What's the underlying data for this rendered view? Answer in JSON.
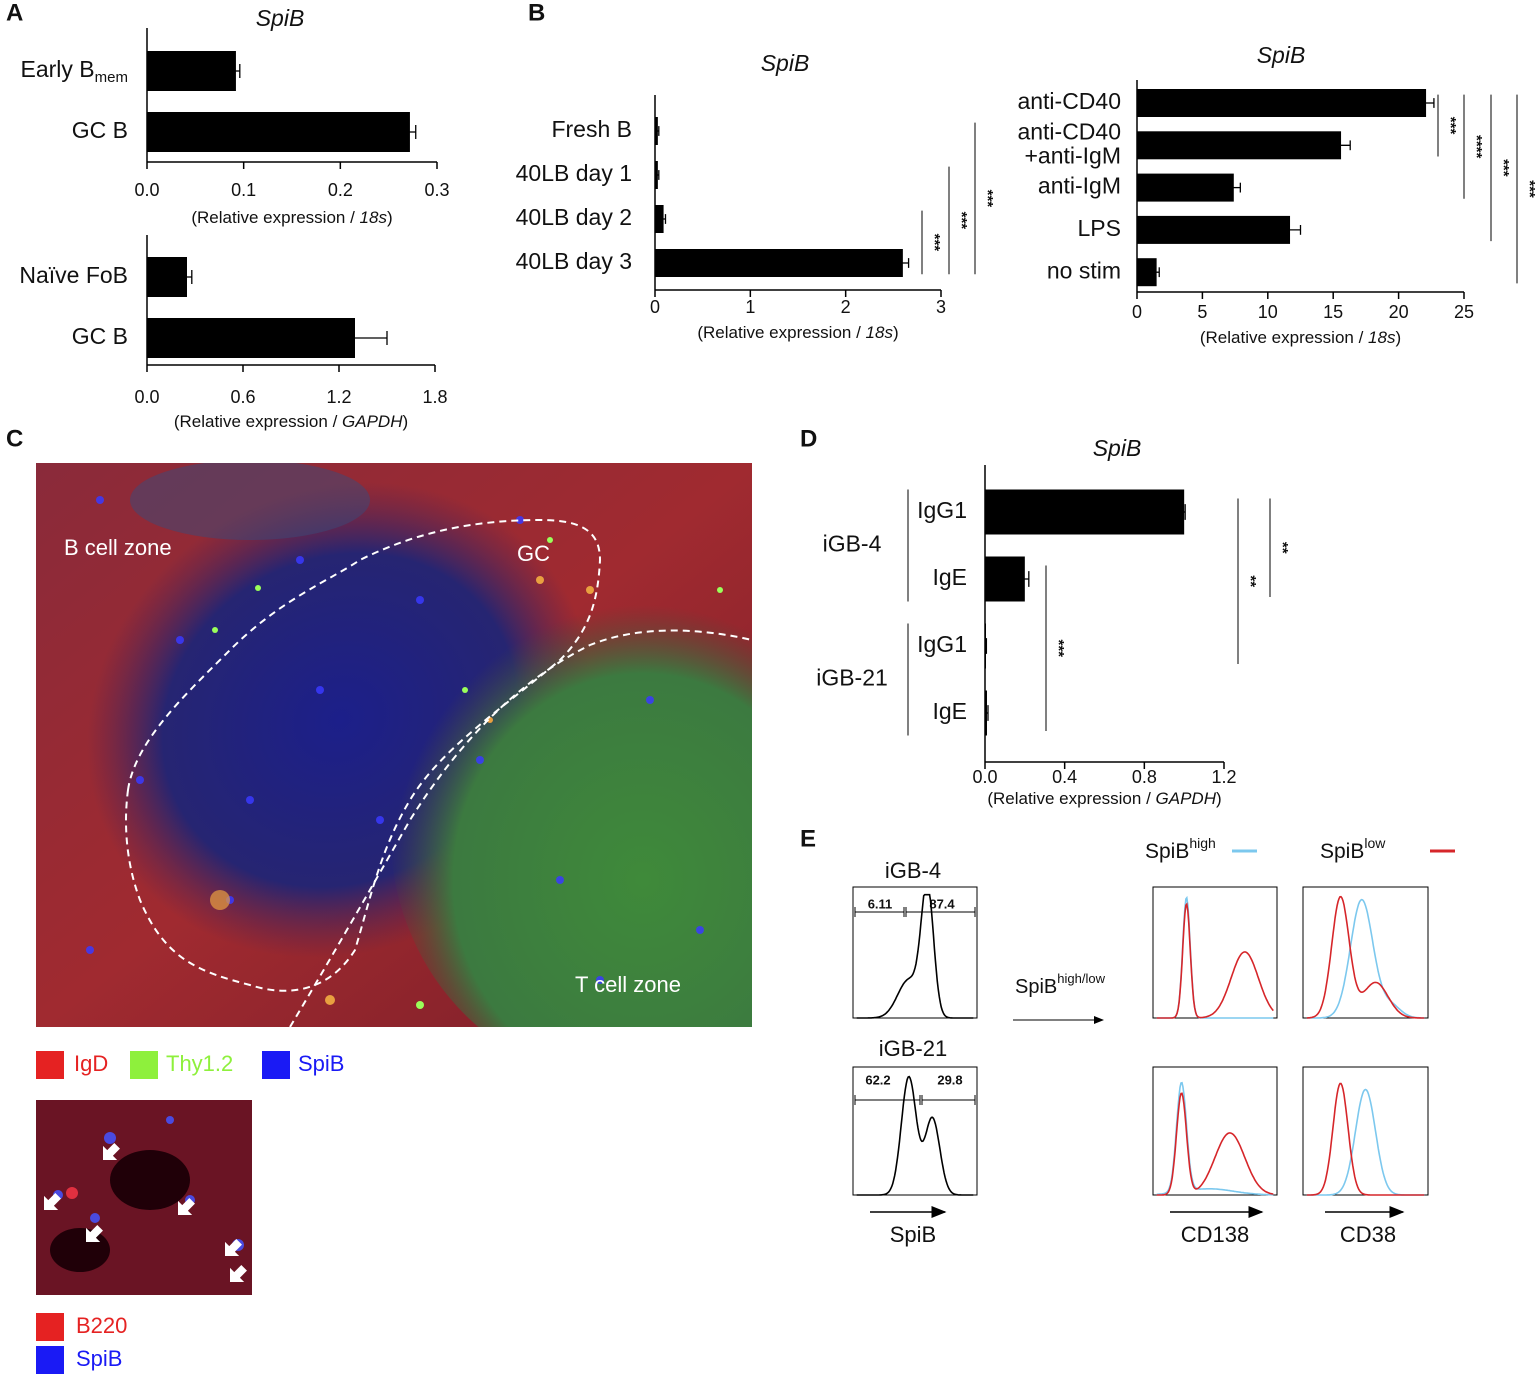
{
  "panel_labels": [
    "A",
    "B",
    "C",
    "D",
    "E"
  ],
  "chart_data": [
    {
      "type": "bar",
      "orientation": "horizontal",
      "title": "SpiB",
      "color": "#000000",
      "categories": [
        "Early B",
        "GC B"
      ],
      "category_subscripts": [
        "mem",
        null
      ],
      "values": [
        0.092,
        0.272
      ],
      "errors": [
        0.004,
        0.006
      ],
      "xlim": [
        0,
        0.3
      ],
      "xticks": [
        {
          "value": 0,
          "label": "0.0"
        },
        0.1,
        0.2,
        0.3
      ],
      "xlabel": [
        "(Relative expression / ",
        "18s",
        ")"
      ],
      "significance": []
    },
    {
      "type": "bar",
      "orientation": "horizontal",
      "color": "#000000",
      "categories": [
        "Naïve FoB",
        "GC B"
      ],
      "values": [
        0.25,
        1.3
      ],
      "errors": [
        0.03,
        0.2
      ],
      "xlim": [
        0,
        1.8
      ],
      "xticks": [
        {
          "value": 0,
          "label": "0.0"
        },
        0.6,
        1.2,
        1.8
      ],
      "xlabel": [
        "(Relative expression / ",
        "GAPDH",
        ")"
      ],
      "significance": []
    },
    {
      "type": "bar",
      "orientation": "horizontal",
      "title": "SpiB",
      "color": "#000000",
      "categories": [
        "Fresh B",
        "40LB day 1",
        "40LB day 2",
        "40LB day 3"
      ],
      "values": [
        0.03,
        0.03,
        0.09,
        2.6
      ],
      "errors": [
        0.01,
        0.01,
        0.02,
        0.06
      ],
      "xlim": [
        0,
        3
      ],
      "xticks": [
        0,
        1,
        2,
        3
      ],
      "xlabel": [
        "(Relative expression / ",
        "18s",
        ")"
      ],
      "significance": [
        {
          "label": "***",
          "from": 2,
          "to": 3
        },
        {
          "label": "***",
          "from": 1,
          "to": 3
        },
        {
          "label": "***",
          "from": 0,
          "to": 3
        }
      ]
    },
    {
      "type": "bar",
      "orientation": "horizontal",
      "title": "SpiB",
      "color": "#000000",
      "categories": [
        "anti-CD40",
        "anti-CD40\n+anti-IgM",
        "anti-IgM",
        "LPS",
        "no stim"
      ],
      "values": [
        22.1,
        15.6,
        7.4,
        11.7,
        1.5
      ],
      "errors": [
        0.6,
        0.7,
        0.5,
        0.8,
        0.2
      ],
      "xlim": [
        0,
        25
      ],
      "xticks": [
        0,
        5,
        10,
        15,
        20,
        25
      ],
      "xlabel": [
        "(Relative expression / ",
        "18s",
        ")"
      ],
      "significance": [
        {
          "label": "***",
          "from": 0,
          "to": 1
        },
        {
          "label": "****",
          "from": 0,
          "to": 2
        },
        {
          "label": "***",
          "from": 0,
          "to": 3
        },
        {
          "label": "***",
          "from": 0,
          "to": 4
        }
      ]
    },
    {
      "type": "bar",
      "orientation": "horizontal",
      "title": "SpiB",
      "color": "#000000",
      "categories": [
        "IgG1",
        "IgE",
        "IgG1",
        "IgE"
      ],
      "groups": [
        {
          "name": "iGB-4",
          "from": 0,
          "to": 1
        },
        {
          "name": "iGB-21",
          "from": 2,
          "to": 3
        }
      ],
      "values": [
        1.0,
        0.2,
        0.005,
        0.01
      ],
      "errors": [
        0.005,
        0.02,
        0.002,
        0.005
      ],
      "xlim": [
        0,
        1.2
      ],
      "xticks": [
        {
          "value": 0,
          "label": "0.0"
        },
        0.4,
        0.8,
        1.2
      ],
      "xlabel": [
        "(Relative expression / ",
        "GAPDH",
        ")"
      ],
      "significance": [
        {
          "label": "**",
          "from": 0,
          "to": 1
        },
        {
          "label": "**",
          "from": 0,
          "to": 2
        },
        {
          "label": "***",
          "from": 1,
          "to": 3
        }
      ]
    }
  ],
  "micrograph": {
    "labels": [
      "B cell zone",
      "GC",
      "T cell zone"
    ]
  },
  "legend_c1": [
    {
      "name": "IgD",
      "color": "#e52222"
    },
    {
      "name": "Thy1.2",
      "color": "#8ef03c"
    },
    {
      "name": "SpiB",
      "color": "#1a1af5"
    }
  ],
  "legend_c2": [
    {
      "name": "B220",
      "color": "#e52222"
    },
    {
      "name": "SpiB",
      "color": "#1a1af5"
    }
  ],
  "flow": {
    "samples": [
      "iGB-4",
      "iGB-21"
    ],
    "gates": [
      [
        6.11,
        87.4
      ],
      [
        62.2,
        29.8
      ]
    ],
    "x_labels": [
      "SpiB",
      "CD138",
      "CD38"
    ],
    "arrow_label": {
      "base": "SpiB",
      "sup": "high/low"
    },
    "legend": [
      {
        "base": "SpiB",
        "sup": "high",
        "color": "#7cc8ee"
      },
      {
        "base": "SpiB",
        "sup": "low",
        "color": "#d6262a"
      }
    ]
  }
}
